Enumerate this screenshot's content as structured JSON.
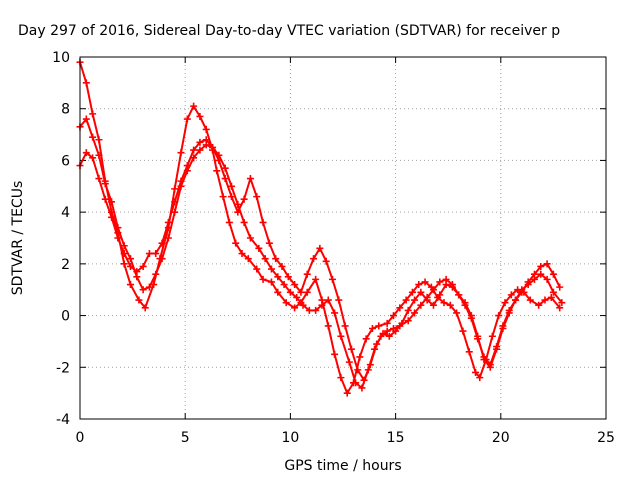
{
  "chart_data": {
    "type": "scatter",
    "title": "Day 297 of 2016, Sidereal Day-to-day VTEC variation (SDTVAR) for receiver p",
    "xlabel": "GPS time / hours",
    "ylabel": "SDTVAR / TECUs",
    "xlim": [
      0,
      25
    ],
    "ylim": [
      -4,
      10
    ],
    "xticks": [
      0,
      5,
      10,
      15,
      20,
      25
    ],
    "yticks": [
      -4,
      -2,
      0,
      2,
      4,
      6,
      8,
      10
    ],
    "grid": true,
    "legend": "none",
    "marker": "plus",
    "color": "#ff0000",
    "series": [
      {
        "x": [
          0.0,
          0.3,
          0.6,
          0.9,
          1.2,
          1.5,
          1.8,
          2.1,
          2.4,
          2.8,
          3.1,
          3.5,
          3.8,
          4.2,
          4.5,
          4.8,
          5.1,
          5.4,
          5.7,
          6.0,
          6.3,
          6.5,
          6.8,
          7.1,
          7.4,
          7.7,
          8.0,
          8.4,
          8.7,
          9.1,
          9.4,
          9.8,
          10.2,
          10.5,
          10.8,
          11.2,
          11.5,
          11.8,
          12.1,
          12.4,
          12.7,
          13.0,
          13.3,
          13.6,
          13.9,
          14.2,
          14.6,
          14.9,
          15.2,
          15.5,
          15.8,
          16.1,
          16.4,
          16.7,
          17.0,
          17.3,
          17.6,
          17.9,
          18.2,
          18.5,
          18.8,
          19.0,
          19.3,
          19.6,
          19.9,
          20.2,
          20.5,
          20.8,
          21.1,
          21.4,
          21.8,
          22.1,
          22.4,
          22.8
        ],
        "y": [
          9.8,
          9.0,
          7.8,
          6.8,
          5.2,
          4.0,
          3.2,
          2.0,
          1.2,
          0.6,
          0.3,
          1.2,
          2.2,
          3.4,
          4.9,
          6.3,
          7.6,
          8.1,
          7.7,
          7.2,
          6.4,
          5.6,
          4.6,
          3.6,
          2.8,
          2.4,
          2.2,
          1.8,
          1.4,
          1.3,
          0.9,
          0.5,
          0.3,
          0.5,
          0.9,
          1.4,
          0.6,
          -0.4,
          -1.5,
          -2.4,
          -3.0,
          -2.6,
          -1.6,
          -0.9,
          -0.5,
          -0.4,
          -0.3,
          0.0,
          0.3,
          0.6,
          0.9,
          1.2,
          1.3,
          1.1,
          0.7,
          0.5,
          0.4,
          0.1,
          -0.6,
          -1.4,
          -2.2,
          -2.4,
          -1.7,
          -0.8,
          0.0,
          0.5,
          0.8,
          1.0,
          0.9,
          0.6,
          0.4,
          0.6,
          0.7,
          0.3
        ]
      },
      {
        "x": [
          0.0,
          0.3,
          0.6,
          0.9,
          1.2,
          1.5,
          1.8,
          2.1,
          2.4,
          2.7,
          3.0,
          3.3,
          3.6,
          3.9,
          4.2,
          4.5,
          4.8,
          5.1,
          5.4,
          5.7,
          6.0,
          6.3,
          6.6,
          6.9,
          7.2,
          7.5,
          7.8,
          8.1,
          8.5,
          8.8,
          9.1,
          9.4,
          9.7,
          10.0,
          10.3,
          10.6,
          10.9,
          11.2,
          11.5,
          11.8,
          12.1,
          12.4,
          12.8,
          13.1,
          13.4,
          13.7,
          14.0,
          14.3,
          14.6,
          14.9,
          15.2,
          15.6,
          15.9,
          16.2,
          16.5,
          16.8,
          17.1,
          17.4,
          17.7,
          18.0,
          18.3,
          18.6,
          18.9,
          19.2,
          19.5,
          19.8,
          20.1,
          20.4,
          20.7,
          21.0,
          21.3,
          21.6,
          21.9,
          22.2,
          22.5,
          22.9
        ],
        "y": [
          7.3,
          7.6,
          6.9,
          6.2,
          5.1,
          4.4,
          3.4,
          2.7,
          2.2,
          1.5,
          1.0,
          1.1,
          1.6,
          2.2,
          3.0,
          4.0,
          5.0,
          5.6,
          6.1,
          6.4,
          6.6,
          6.5,
          6.2,
          5.7,
          5.0,
          4.3,
          3.6,
          3.0,
          2.6,
          2.2,
          1.8,
          1.5,
          1.2,
          0.9,
          0.7,
          0.4,
          0.2,
          0.2,
          0.4,
          0.6,
          0.1,
          -0.8,
          -1.8,
          -2.6,
          -2.8,
          -2.1,
          -1.3,
          -0.8,
          -0.6,
          -0.5,
          -0.4,
          -0.2,
          0.1,
          0.4,
          0.7,
          1.0,
          1.3,
          1.4,
          1.2,
          0.8,
          0.5,
          0.0,
          -0.8,
          -1.7,
          -2.0,
          -1.3,
          -0.5,
          0.1,
          0.6,
          1.0,
          1.2,
          1.4,
          1.6,
          1.4,
          0.9,
          0.5
        ]
      },
      {
        "x": [
          0.0,
          0.3,
          0.6,
          0.9,
          1.2,
          1.5,
          1.8,
          2.1,
          2.4,
          2.7,
          3.0,
          3.3,
          3.6,
          3.9,
          4.2,
          4.5,
          4.8,
          5.1,
          5.4,
          5.7,
          6.0,
          6.3,
          6.6,
          6.9,
          7.2,
          7.5,
          7.8,
          8.1,
          8.4,
          8.7,
          9.0,
          9.3,
          9.6,
          9.9,
          10.2,
          10.5,
          10.8,
          11.1,
          11.4,
          11.7,
          12.0,
          12.3,
          12.6,
          12.9,
          13.2,
          13.5,
          13.8,
          14.1,
          14.4,
          14.7,
          15.0,
          15.3,
          15.6,
          15.9,
          16.2,
          16.5,
          16.8,
          17.1,
          17.4,
          17.7,
          18.0,
          18.3,
          18.6,
          18.9,
          19.2,
          19.5,
          19.8,
          20.1,
          20.4,
          20.7,
          21.0,
          21.3,
          21.6,
          21.9,
          22.2,
          22.5,
          22.8
        ],
        "y": [
          5.8,
          6.3,
          6.1,
          5.3,
          4.5,
          3.8,
          3.0,
          2.4,
          1.9,
          1.7,
          1.9,
          2.4,
          2.4,
          2.8,
          3.6,
          4.4,
          5.2,
          5.8,
          6.4,
          6.7,
          6.8,
          6.5,
          6.0,
          5.3,
          4.6,
          4.0,
          4.5,
          5.3,
          4.6,
          3.6,
          2.8,
          2.2,
          1.9,
          1.5,
          1.2,
          0.9,
          1.6,
          2.2,
          2.6,
          2.1,
          1.4,
          0.6,
          -0.4,
          -1.3,
          -2.1,
          -2.5,
          -1.9,
          -1.1,
          -0.7,
          -0.8,
          -0.6,
          -0.3,
          0.2,
          0.6,
          0.9,
          0.6,
          0.4,
          0.8,
          1.2,
          1.1,
          0.8,
          0.4,
          -0.1,
          -0.9,
          -1.6,
          -1.9,
          -1.2,
          -0.4,
          0.2,
          0.6,
          0.9,
          1.3,
          1.6,
          1.9,
          2.0,
          1.6,
          1.1
        ]
      }
    ]
  }
}
